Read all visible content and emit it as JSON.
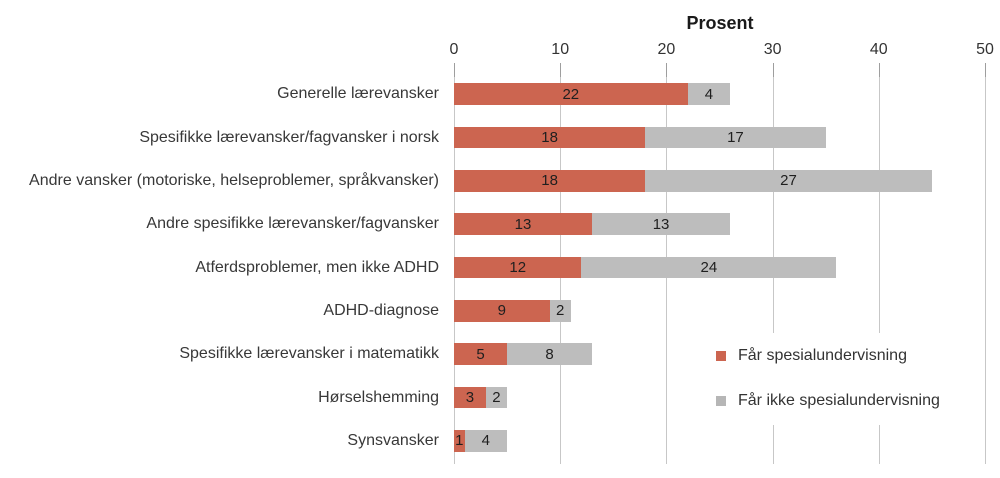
{
  "chart_data": {
    "type": "bar",
    "orientation": "horizontal",
    "stacked": true,
    "title": "Prosent",
    "xlabel": "Prosent",
    "ylabel": "",
    "xlim": [
      0,
      50
    ],
    "x_ticks": [
      0,
      10,
      20,
      30,
      40,
      50
    ],
    "grid": true,
    "legend_position": "inside-bottom-right",
    "categories": [
      "Generelle lærevansker",
      "Spesifikke lærevansker/fagvansker i norsk",
      "Andre vansker (motoriske, helseproblemer, språkvansker)",
      "Andre spesifikke lærevansker/fagvansker",
      "Atferdsproblemer, men ikke ADHD",
      "ADHD-diagnose",
      "Spesifikke lærevansker i matematikk",
      "Hørselshemming",
      "Synsvansker"
    ],
    "series": [
      {
        "name": "Får spesialundervisning",
        "color": "#cc6550",
        "values": [
          22,
          18,
          18,
          13,
          12,
          9,
          5,
          3,
          1
        ]
      },
      {
        "name": "Får ikke spesialundervisning",
        "color": "#bdbdbd",
        "values": [
          4,
          17,
          27,
          13,
          24,
          2,
          8,
          2,
          4
        ]
      }
    ]
  },
  "colors": {
    "gridline": "#c7c7c7",
    "tick": "#9e9e9e",
    "axis_text": "#333333",
    "value_text": "#1f1f1f",
    "background": "#ffffff",
    "legend_marker_gray": "#b6b6b6"
  }
}
